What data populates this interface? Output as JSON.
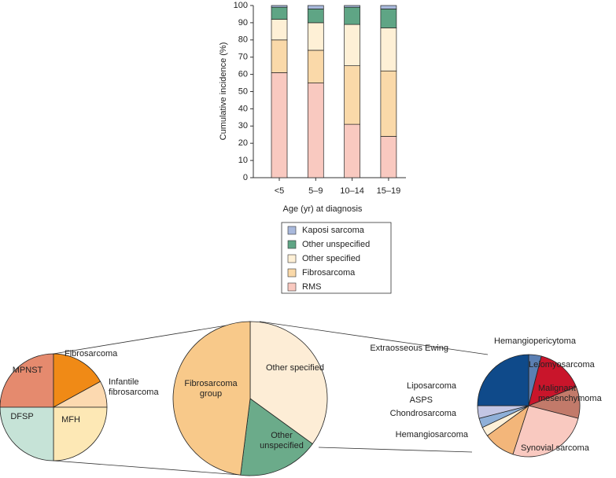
{
  "chart_data": [
    {
      "type": "stacked_bar",
      "y_label": "Cumulative incidence (%)",
      "x_label": "Age (yr) at diagnosis",
      "categories": [
        "<5",
        "5–9",
        "10–14",
        "15–19"
      ],
      "ylim": [
        0,
        100
      ],
      "yticks": [
        0,
        10,
        20,
        30,
        40,
        50,
        60,
        70,
        80,
        90,
        100
      ],
      "series": [
        {
          "name": "RMS",
          "color": "#f9c9c0",
          "values": [
            61,
            55,
            31,
            24
          ]
        },
        {
          "name": "Fibrosarcoma",
          "color": "#fad9a9",
          "values": [
            19,
            19,
            34,
            38
          ]
        },
        {
          "name": "Other specified",
          "color": "#fef0d6",
          "values": [
            12,
            16,
            24,
            25
          ]
        },
        {
          "name": "Other unspecified",
          "color": "#5fa585",
          "values": [
            7,
            8,
            10,
            11
          ]
        },
        {
          "name": "Kaposi sarcoma",
          "color": "#a9b9dc",
          "values": [
            1,
            2,
            1,
            2
          ]
        }
      ]
    },
    {
      "type": "pie",
      "categories": [
        "MPNST",
        "Fibrosarcoma",
        "Infantile fibrosarcoma",
        "MFH",
        "DFSP"
      ],
      "values": [
        25,
        17,
        8,
        25,
        25
      ],
      "colors": [
        "#e58a6e",
        "#f08a16",
        "#fcd9b0",
        "#fde8b5",
        "#c6e3d7"
      ]
    },
    {
      "type": "pie",
      "categories": [
        "Other specified",
        "Other unspecified",
        "Fibrosarcoma group"
      ],
      "values": [
        35,
        17,
        48
      ],
      "colors": [
        "#fdedd6",
        "#6bab8a",
        "#f8c98a"
      ]
    },
    {
      "type": "pie",
      "categories": [
        "Hemangiopericytoma",
        "Leiomyosarcoma",
        "Malignant mesenchymoma",
        "Synovial sarcoma",
        "Hemangiosarcoma",
        "Chondrosarcoma",
        "ASPS",
        "Liposarcoma",
        "Extraosseous Ewing"
      ],
      "values": [
        4,
        15,
        10,
        26,
        10,
        3,
        3,
        4,
        25
      ],
      "colors": [
        "#5b7fb3",
        "#c9152b",
        "#c27a6a",
        "#f9c9c0",
        "#f3b67a",
        "#fdf0d8",
        "#8fb0d8",
        "#c3c6e4",
        "#0f4a8a"
      ]
    }
  ]
}
